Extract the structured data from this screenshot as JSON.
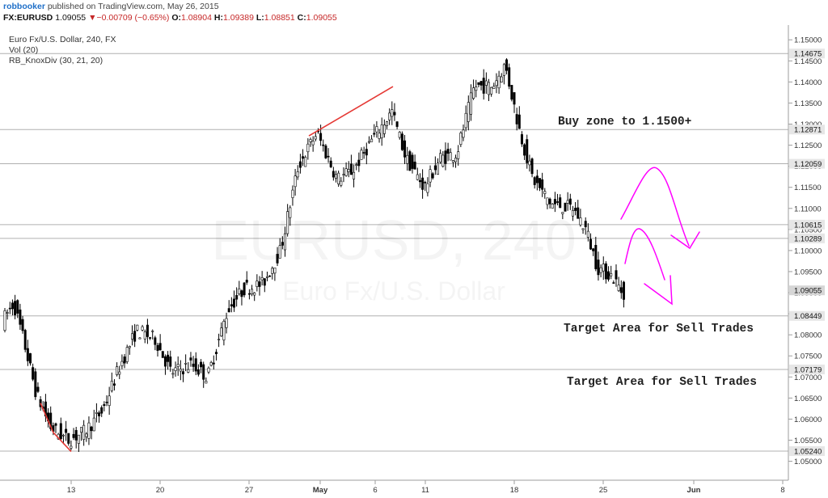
{
  "header": {
    "author": "robbooker",
    "published_text": "published on TradingView.com, May 26, 2015",
    "symbol": "FX:EURUSD",
    "last": "1.09055",
    "change": "−0.00709 (−0.65%)",
    "o_label": "O:",
    "o_value": "1.08904",
    "h_label": "H:",
    "h_value": "1.09389",
    "l_label": "L:",
    "l_value": "1.08851",
    "c_label": "C:",
    "c_value": "1.09055"
  },
  "legend": {
    "line1": "Euro Fx/U.S. Dollar, 240, FX",
    "line2": "Vol (20)",
    "line3": "RB_KnoxDiv (30, 21, 20)"
  },
  "watermark": {
    "line1": "EURUSD, 240",
    "line2": "Euro Fx/U.S. Dollar"
  },
  "annotations": {
    "buy": "Buy zone to 1.1500+",
    "sell1": "Target Area for Sell Trades",
    "sell2": "Target Area for Sell Trades"
  },
  "colors": {
    "up_candle": "#ffffff",
    "down_candle": "#000000",
    "wick": "#000000",
    "divergence_line": "#e53935",
    "arrow": "#ff00ff",
    "level_line": "#b0b0b0",
    "badge_fill": "#e6e6e6",
    "last_badge_fill": "#d6d6d6"
  },
  "chart_data": {
    "type": "candlestick",
    "ylim": [
      1.0455,
      1.1535
    ],
    "y_ticks": [
      "1.15000",
      "1.14500",
      "1.14000",
      "1.13500",
      "1.13000",
      "1.12500",
      "1.12000",
      "1.11500",
      "1.11000",
      "1.10500",
      "1.10000",
      "1.09500",
      "1.09000",
      "1.08500",
      "1.08000",
      "1.07500",
      "1.07000",
      "1.06500",
      "1.06000",
      "1.05500",
      "1.05000"
    ],
    "x_ticks": [
      "13",
      "20",
      "27",
      "May",
      "6",
      "11",
      "18",
      "25",
      "Jun",
      "8"
    ],
    "levels": [
      {
        "value": 1.14675,
        "label": "1.14675"
      },
      {
        "value": 1.12871,
        "label": "1.12871"
      },
      {
        "value": 1.12059,
        "label": "1.12059"
      },
      {
        "value": 1.10615,
        "label": "1.10615"
      },
      {
        "value": 1.10289,
        "label": "1.10289"
      },
      {
        "value": 1.08449,
        "label": "1.08449"
      },
      {
        "value": 1.07179,
        "label": "1.07179"
      },
      {
        "value": 1.0524,
        "label": "1.05240"
      }
    ],
    "last_price": {
      "value": 1.09055,
      "label": "1.09055"
    },
    "divergence_lines": [
      [
        [
          50,
          1.0638
        ],
        [
          66,
          1.0568
        ],
        [
          88,
          1.0523
        ]
      ],
      [
        [
          382,
          1.1272
        ],
        [
          486,
          1.1389
        ]
      ]
    ],
    "trend_knots": [
      [
        5,
        1.083
      ],
      [
        20,
        1.0875
      ],
      [
        32,
        1.079
      ],
      [
        48,
        1.066
      ],
      [
        66,
        1.058
      ],
      [
        88,
        1.055
      ],
      [
        108,
        1.057
      ],
      [
        130,
        1.062
      ],
      [
        150,
        1.072
      ],
      [
        172,
        1.081
      ],
      [
        195,
        1.079
      ],
      [
        215,
        1.071
      ],
      [
        240,
        1.073
      ],
      [
        260,
        1.07
      ],
      [
        285,
        1.086
      ],
      [
        305,
        1.091
      ],
      [
        328,
        1.092
      ],
      [
        350,
        1.1
      ],
      [
        372,
        1.12
      ],
      [
        395,
        1.128
      ],
      [
        420,
        1.117
      ],
      [
        440,
        1.119
      ],
      [
        462,
        1.126
      ],
      [
        488,
        1.133
      ],
      [
        505,
        1.122
      ],
      [
        528,
        1.115
      ],
      [
        548,
        1.122
      ],
      [
        568,
        1.123
      ],
      [
        590,
        1.139
      ],
      [
        612,
        1.139
      ],
      [
        628,
        1.144
      ],
      [
        645,
        1.129
      ],
      [
        662,
        1.117
      ],
      [
        685,
        1.111
      ],
      [
        712,
        1.11
      ],
      [
        728,
        1.105
      ],
      [
        742,
        1.096
      ],
      [
        760,
        1.094
      ],
      [
        773,
        1.09
      ]
    ]
  }
}
